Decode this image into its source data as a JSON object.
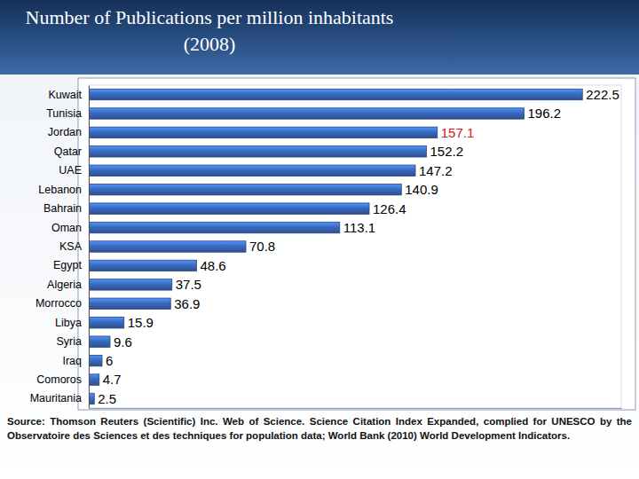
{
  "chart_data": {
    "type": "bar",
    "title": "Number of Publications per million inhabitants (2008)",
    "orientation": "horizontal",
    "categories": [
      "Kuwait",
      "Tunisia",
      "Jordan",
      "Qatar",
      "UAE",
      "Lebanon",
      "Bahrain",
      "Oman",
      "KSA",
      "Egypt",
      "Algeria",
      "Morrocco",
      "Libya",
      "Syria",
      "Iraq",
      "Comoros",
      "Mauritania"
    ],
    "values": [
      222.5,
      196.2,
      157.1,
      152.2,
      147.2,
      140.9,
      126.4,
      113.1,
      70.8,
      48.6,
      37.5,
      36.9,
      15.9,
      9.6,
      6,
      4.7,
      2.5
    ],
    "color": "#3a6bbf",
    "xlim": [
      0,
      240
    ],
    "xticks": [],
    "data_labels": true,
    "tick_labels": "y",
    "annotations": [
      "Source: Thomson Reuters (Scientific) Inc. Web of Science.  Science Citation Index Expanded, complied for UNESCO by the Observatoire des Sciences et des techniques for population data; World Bank (2010) World Development Indicators."
    ]
  }
}
